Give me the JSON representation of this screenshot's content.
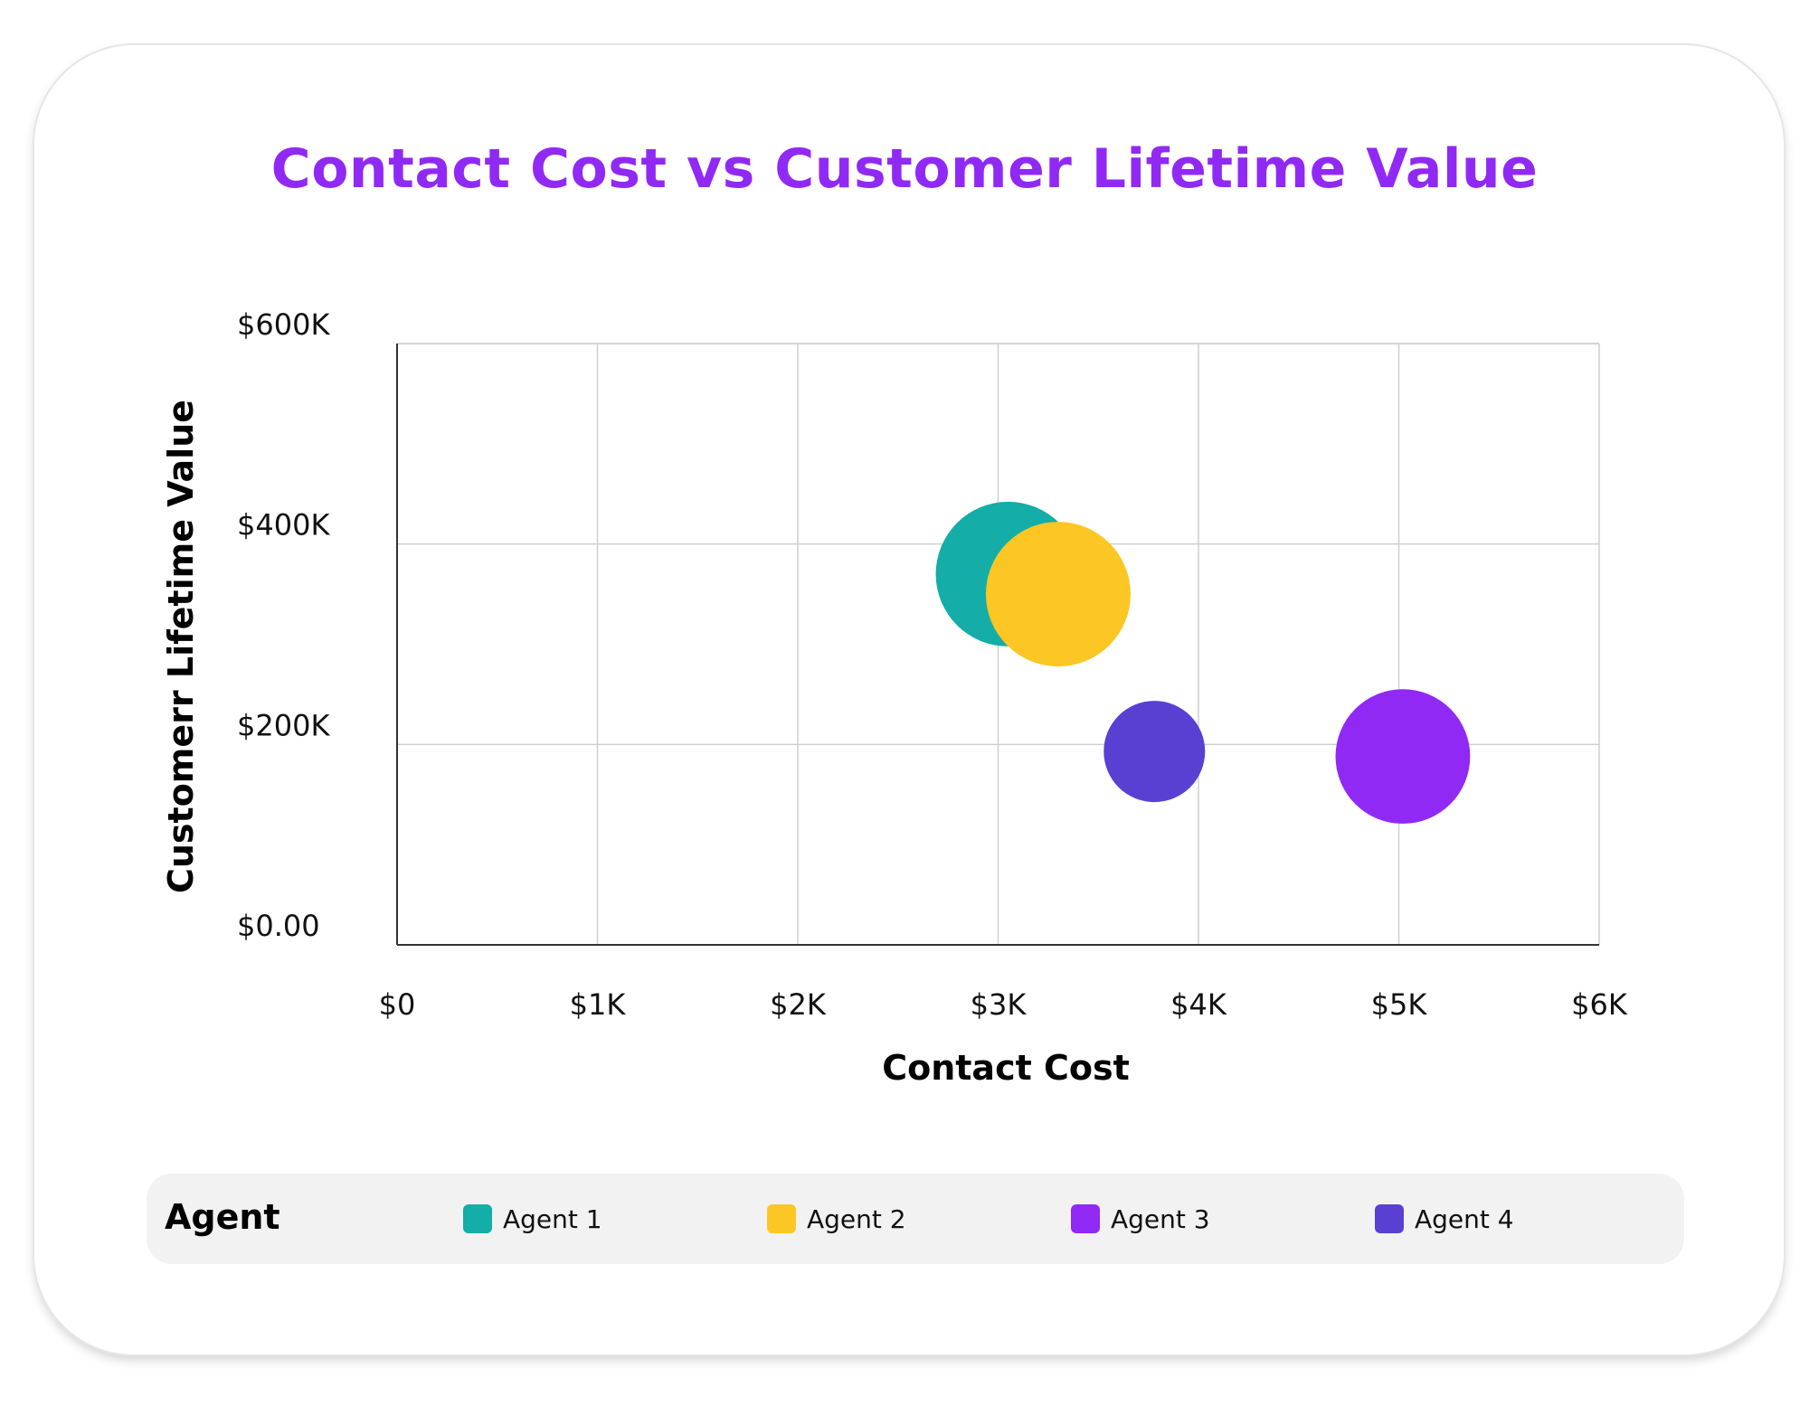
{
  "chart_data": {
    "type": "bubble",
    "title": "Contact Cost vs Customer Lifetime Value",
    "xlabel": "Contact Cost",
    "ylabel": "Customerr Lifetime Value",
    "xlim": [
      0,
      6000
    ],
    "ylim": [
      0,
      600000
    ],
    "x_ticks": [
      {
        "value": 0,
        "label": "$0"
      },
      {
        "value": 1000,
        "label": "$1K"
      },
      {
        "value": 2000,
        "label": "$2K"
      },
      {
        "value": 3000,
        "label": "$3K"
      },
      {
        "value": 4000,
        "label": "$4K"
      },
      {
        "value": 5000,
        "label": "$5K"
      },
      {
        "value": 6000,
        "label": "$6K"
      }
    ],
    "y_ticks": [
      {
        "value": 0,
        "label": "$0.00"
      },
      {
        "value": 200000,
        "label": "$200K"
      },
      {
        "value": 400000,
        "label": "$400K"
      },
      {
        "value": 600000,
        "label": "$600K"
      }
    ],
    "grid": true,
    "legend_title": "Agent",
    "legend_position": "bottom",
    "series": [
      {
        "name": "Agent 1",
        "color": "#14ada8",
        "x": 3050,
        "y": 370000,
        "size": 1.0
      },
      {
        "name": "Agent 2",
        "color": "#fcc624",
        "x": 3300,
        "y": 350000,
        "size": 1.0
      },
      {
        "name": "Agent 3",
        "color": "#9129f5",
        "x": 5020,
        "y": 188000,
        "size": 0.93
      },
      {
        "name": "Agent 4",
        "color": "#5a40d2",
        "x": 3780,
        "y": 193000,
        "size": 0.7
      }
    ]
  }
}
